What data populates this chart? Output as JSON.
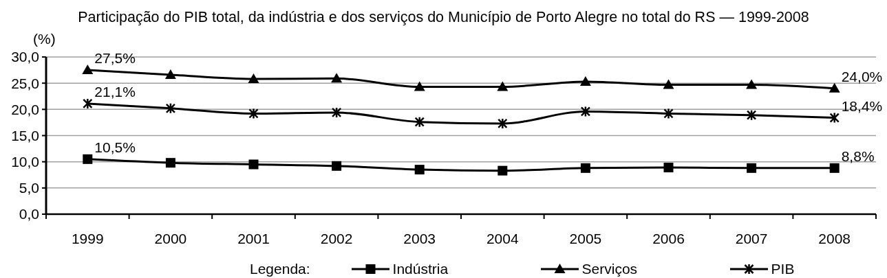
{
  "chart_data": {
    "type": "line",
    "title": "Participação do PIB total, da indústria e dos serviços do Município de Porto Alegre no total do RS — 1999-2008",
    "ylabel": "(%)",
    "legend_title": "Legenda:",
    "legend": "bottom",
    "grid": "y",
    "categories": [
      "1999",
      "2000",
      "2001",
      "2002",
      "2003",
      "2004",
      "2005",
      "2006",
      "2007",
      "2008"
    ],
    "series": [
      {
        "name": "Indústria",
        "color": "#000000",
        "marker": "square",
        "values": [
          10.5,
          9.8,
          9.5,
          9.2,
          8.5,
          8.3,
          8.8,
          8.9,
          8.8,
          8.8
        ],
        "value_labels": [
          "10,5%",
          null,
          null,
          null,
          null,
          null,
          null,
          null,
          null,
          "8,8%"
        ]
      },
      {
        "name": "Serviços",
        "color": "#000000",
        "marker": "triangle",
        "values": [
          27.5,
          26.6,
          25.8,
          25.9,
          24.3,
          24.3,
          25.3,
          24.7,
          24.7,
          24.0
        ],
        "value_labels": [
          "27,5%",
          null,
          null,
          null,
          null,
          null,
          null,
          null,
          null,
          "24,0%"
        ]
      },
      {
        "name": "PIB",
        "color": "#000000",
        "marker": "cross",
        "values": [
          21.1,
          20.2,
          19.2,
          19.4,
          17.6,
          17.3,
          19.6,
          19.2,
          18.9,
          18.4
        ],
        "value_labels": [
          "21,1%",
          null,
          null,
          null,
          null,
          null,
          null,
          null,
          null,
          "18,4%"
        ]
      }
    ],
    "ylim": [
      0,
      30
    ],
    "yticks": [
      {
        "value": 0,
        "label": "0,0"
      },
      {
        "value": 5,
        "label": "5,0"
      },
      {
        "value": 10,
        "label": "10,0"
      },
      {
        "value": 15,
        "label": "15,0"
      },
      {
        "value": 20,
        "label": "20,0"
      },
      {
        "value": 25,
        "label": "25,0"
      },
      {
        "value": 30,
        "label": "30,0"
      }
    ]
  }
}
